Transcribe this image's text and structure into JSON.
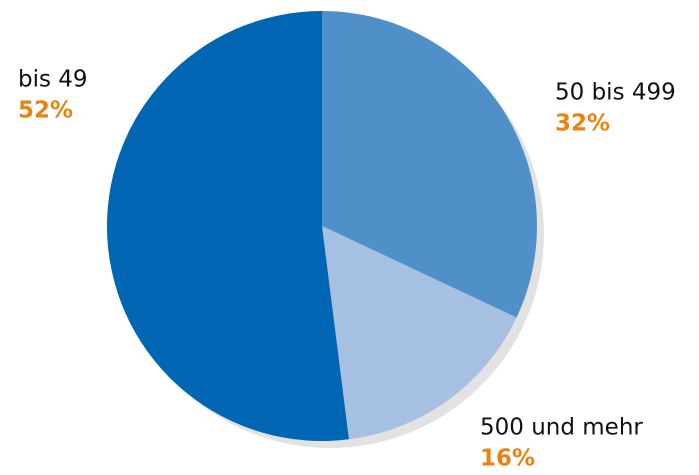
{
  "chart_data": {
    "type": "pie",
    "categories": [
      "50 bis 499",
      "500 und mehr",
      "bis 49"
    ],
    "values": [
      32,
      16,
      52
    ],
    "value_labels": [
      "32%",
      "16%",
      "52%"
    ],
    "colors": [
      "#4f90c8",
      "#a6c0e2",
      "#0066b3"
    ],
    "start_angle": 0,
    "direction": "clockwise"
  }
}
